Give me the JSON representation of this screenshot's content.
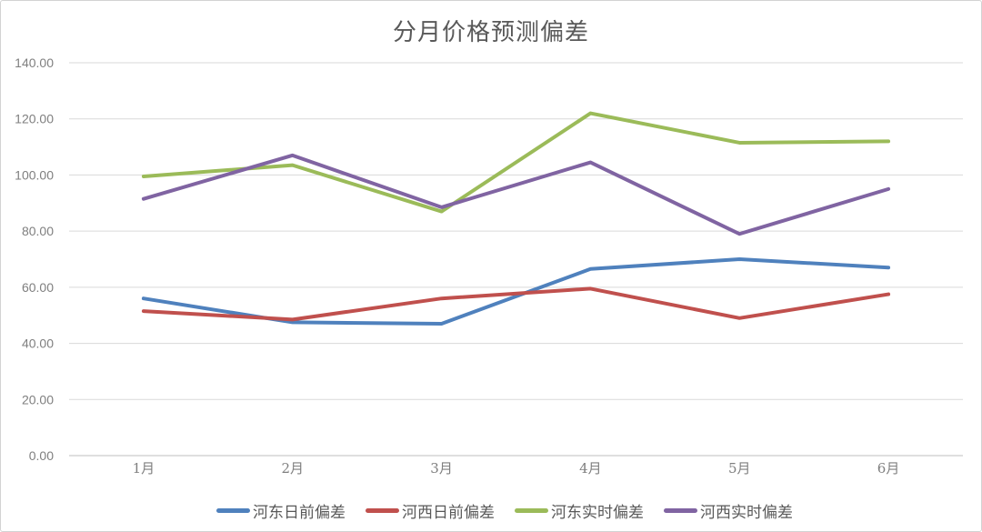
{
  "chart_data": {
    "type": "line",
    "title": "分月价格预测偏差",
    "categories": [
      "1月",
      "2月",
      "3月",
      "4月",
      "5月",
      "6月"
    ],
    "series": [
      {
        "name": "河东日前偏差",
        "color": "#4F81BD",
        "values": [
          56,
          47.5,
          47,
          66.5,
          70,
          67
        ]
      },
      {
        "name": "河西日前偏差",
        "color": "#C0504D",
        "values": [
          51.5,
          48.5,
          56,
          59.5,
          49,
          57.5
        ]
      },
      {
        "name": "河东实时偏差",
        "color": "#9BBB59",
        "values": [
          99.5,
          103.5,
          87,
          122,
          111.5,
          112
        ]
      },
      {
        "name": "河西实时偏差",
        "color": "#8064A2",
        "values": [
          91.5,
          107,
          88.5,
          104.5,
          79,
          95
        ]
      }
    ],
    "y_axis": {
      "min": 0,
      "max": 140,
      "step": 20,
      "ticks": [
        "0.00",
        "20.00",
        "40.00",
        "60.00",
        "80.00",
        "100.00",
        "120.00",
        "140.00"
      ]
    },
    "xlabel": "",
    "ylabel": "",
    "grid": "horizontal",
    "legend_position": "bottom"
  },
  "styles": {
    "gridline_color": "#D9D9D9",
    "axisline_color": "#BFBFBF",
    "tick_text_color": "#7F7F7F",
    "title_color": "#595959",
    "legend_text_color": "#595959",
    "background_color": "#FFFFFF",
    "border_color": "#D3D3D3"
  }
}
